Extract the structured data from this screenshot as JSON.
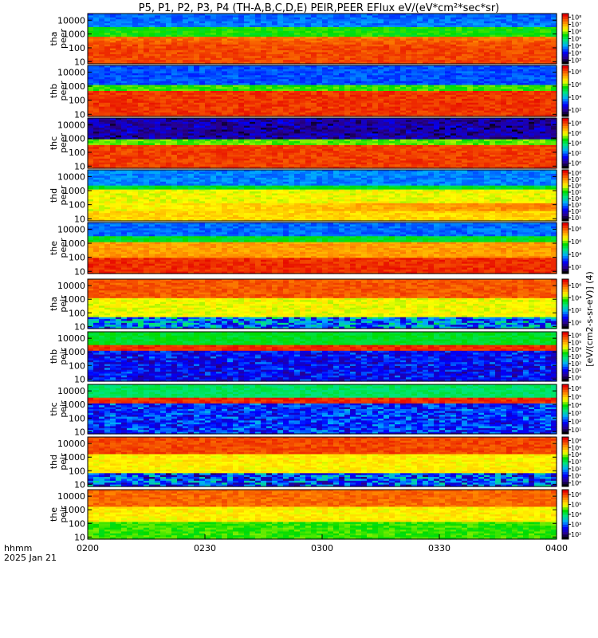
{
  "title": "P5, P1, P2, P3, P4 (TH-A,B,C,D,E) PEIR,PEER EFlux eV/(eV*cm²*sec*sr)",
  "time_axis": {
    "label_line1": "hhmm",
    "label_line2": "2025 Jan 21",
    "ticks": [
      "0200",
      "0230",
      "0300",
      "0330",
      "0400"
    ]
  },
  "colorbar_unit": "[eV/(cm2-s-sr-eV)] (4)",
  "chart_data": [
    {
      "type": "heatmap",
      "panel": "tha peer",
      "ylabel_line1": "tha",
      "ylabel_line2": "peer",
      "y_ticks": [
        "10",
        "100",
        "1000",
        "10000"
      ],
      "y_scale": "log",
      "colorbar_ticks": [
        "10²",
        "10³",
        "10⁴",
        "10⁵",
        "10⁶",
        "10⁷",
        "10⁸"
      ],
      "dominant": "red/orange low energies, green band near 1000 eV"
    },
    {
      "type": "heatmap",
      "panel": "thb peer",
      "ylabel_line1": "thb",
      "ylabel_line2": "peer",
      "y_ticks": [
        "10",
        "100",
        "1000",
        "10000"
      ],
      "y_scale": "log",
      "colorbar_ticks": [
        "10²",
        "10⁴",
        "10⁶",
        "10⁸"
      ],
      "dominant": "red below 100 eV, blue above 1000 eV"
    },
    {
      "type": "heatmap",
      "panel": "thc peer",
      "ylabel_line1": "thc",
      "ylabel_line2": "peer",
      "y_ticks": [
        "10",
        "100",
        "1000",
        "10000"
      ],
      "y_scale": "log",
      "colorbar_ticks": [
        "10⁰",
        "10²",
        "10⁴",
        "10⁶",
        "10⁸"
      ],
      "dominant": "red below 100 eV, noisy blue/black above"
    },
    {
      "type": "heatmap",
      "panel": "thd peer",
      "ylabel_line1": "thd",
      "ylabel_line2": "peer",
      "y_ticks": [
        "10",
        "100",
        "1000",
        "10000"
      ],
      "y_scale": "log",
      "colorbar_ticks": [
        "10¹",
        "10²",
        "10³",
        "10⁴",
        "10⁵",
        "10⁶",
        "10⁷",
        "10⁸"
      ],
      "dominant": "yellow/orange mid energies"
    },
    {
      "type": "heatmap",
      "panel": "the peer",
      "ylabel_line1": "the",
      "ylabel_line2": "peer",
      "y_ticks": [
        "10",
        "100",
        "1000",
        "10000"
      ],
      "y_scale": "log",
      "colorbar_ticks": [
        "10²",
        "10⁴",
        "10⁶",
        "10⁸"
      ],
      "dominant": "red below 100 eV, orange band"
    },
    {
      "type": "heatmap",
      "panel": "tha peir",
      "ylabel_line1": "tha",
      "ylabel_line2": "peir",
      "y_ticks": [
        "10",
        "100",
        "1000",
        "10000"
      ],
      "y_scale": "log",
      "colorbar_ticks": [
        "10⁰",
        "10²",
        "10⁴",
        "10⁶"
      ],
      "dominant": "red above 1000 eV, yellow/green below"
    },
    {
      "type": "heatmap",
      "panel": "thb peir",
      "ylabel_line1": "thb",
      "ylabel_line2": "peir",
      "y_ticks": [
        "10",
        "100",
        "1000",
        "10000"
      ],
      "y_scale": "log",
      "colorbar_ticks": [
        "10⁰",
        "10¹",
        "10²",
        "10³",
        "10⁴",
        "10⁵",
        "10⁶"
      ],
      "dominant": "red band near 3000 eV, blue below"
    },
    {
      "type": "heatmap",
      "panel": "thc peir",
      "ylabel_line1": "thc",
      "ylabel_line2": "peir",
      "y_ticks": [
        "10",
        "100",
        "1000",
        "10000"
      ],
      "y_scale": "log",
      "colorbar_ticks": [
        "10¹",
        "10²",
        "10³",
        "10⁴",
        "10⁵",
        "10⁶"
      ],
      "dominant": "red band near 3000 eV, blue below"
    },
    {
      "type": "heatmap",
      "panel": "thd peir",
      "ylabel_line1": "thd",
      "ylabel_line2": "peir",
      "y_ticks": [
        "10",
        "100",
        "1000",
        "10000"
      ],
      "y_scale": "log",
      "colorbar_ticks": [
        "10⁰",
        "10¹",
        "10²",
        "10³",
        "10⁴",
        "10⁵",
        "10⁶"
      ],
      "dominant": "red high energies, yellow middle, black/green low"
    },
    {
      "type": "heatmap",
      "panel": "the peir",
      "ylabel_line1": "the",
      "ylabel_line2": "peir",
      "y_ticks": [
        "10",
        "100",
        "1000",
        "10000"
      ],
      "y_scale": "log",
      "colorbar_ticks": [
        "10²",
        "10³",
        "10⁴",
        "10⁵",
        "10⁶"
      ],
      "dominant": "red high energies, yellow/green lower"
    }
  ]
}
